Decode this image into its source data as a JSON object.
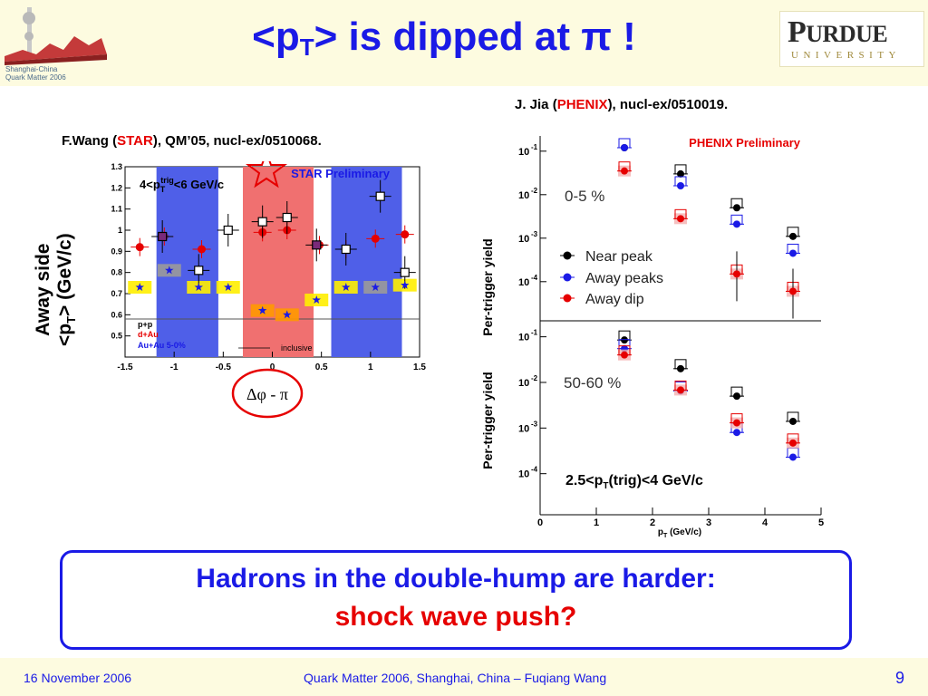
{
  "slide": {
    "title_main": "<p",
    "title_sub": "T",
    "title_rest": "> is dipped at π !",
    "slide_number": "9"
  },
  "logos": {
    "qm_line1": "Shanghai-China",
    "qm_line2": "Quark Matter 2006",
    "purdue_name_cap": "P",
    "purdue_name_rest": "URDUE",
    "purdue_univ": "UNIVERSITY"
  },
  "refs": {
    "star_prefix": "F.Wang (",
    "star_exp": "STAR",
    "star_suffix": "), QM’05, nucl-ex/0510068.",
    "phenix_prefix": "J. Jia (",
    "phenix_exp": "PHENIX",
    "phenix_suffix": "), nucl-ex/0510019."
  },
  "star_plot": {
    "ylabel_line1": "Away side",
    "ylabel_line2_pre": "<p",
    "ylabel_line2_sub": "T",
    "ylabel_line2_post": "> (GeV/c)",
    "xlabel": "Δφ - π",
    "preliminary": "STAR Preliminary",
    "range_label": "4<p",
    "range_sub": "T",
    "range_sup": "trig",
    "range_post": "<6 GeV/c",
    "legend_pp": "p+p",
    "legend_dau": "d+Au",
    "legend_auau": "Au+Au 5-0%",
    "legend_inclusive": "inclusive"
  },
  "phenix_plot": {
    "preliminary": "PHENIX Preliminary",
    "ylabel_top": "Per-trigger yield",
    "ylabel_bottom": "Per-trigger yield",
    "centrality_top": "0-5 %",
    "centrality_bottom": "50-60 %",
    "legend_near": "Near peak",
    "legend_away": "Away peaks",
    "legend_dip": "Away  dip",
    "trig_label_pre": "2.5<p",
    "trig_label_sub": "T",
    "trig_label_post": "(trig)<4 GeV/c",
    "xlabel_pre": "p",
    "xlabel_sub": "T",
    "xlabel_post": " (GeV/c)"
  },
  "conclusion": {
    "line1": "Hadrons in the double-hump are harder:",
    "line2": "shock wave push?"
  },
  "footer": {
    "date": "16 November 2006",
    "center": "Quark Matter 2006, Shanghai, China – Fuqiang Wang"
  },
  "colors": {
    "title_blue": "#1a1ae6",
    "accent_red": "#e60000",
    "band_blue": "#4f5fe8",
    "band_red": "#f07070",
    "header_bg": "#fdfbe0"
  },
  "chart_data": [
    {
      "type": "scatter",
      "title": "STAR Preliminary",
      "xlabel": "Δφ - π",
      "ylabel": "Away side <pT> (GeV/c)",
      "xlim": [
        -1.5,
        1.5
      ],
      "ylim": [
        0.4,
        1.3
      ],
      "x_ticks": [
        -1.5,
        -1,
        -0.5,
        0,
        0.5,
        1,
        1.5
      ],
      "y_ticks": [
        0.5,
        0.6,
        0.7,
        0.8,
        0.9,
        1,
        1.1,
        1.2,
        1.3
      ],
      "inclusive_level": 0.58,
      "series": [
        {
          "name": "p+p",
          "x": [
            -1.12,
            -0.75,
            -0.45,
            -0.1,
            0.15,
            0.45,
            0.75,
            1.1,
            1.35
          ],
          "y": [
            0.97,
            0.81,
            1.0,
            1.04,
            1.06,
            0.93,
            0.91,
            1.16,
            0.8
          ]
        },
        {
          "name": "d+Au",
          "x": [
            -1.35,
            -1.1,
            -0.72,
            -0.1,
            0.15,
            0.48,
            0.75,
            1.05,
            1.35
          ],
          "y": [
            0.92,
            0.97,
            0.91,
            0.99,
            1.0,
            0.93,
            0.91,
            0.96,
            0.98
          ]
        },
        {
          "name": "Au+Au 5-0%",
          "x": [
            -1.35,
            -1.05,
            -0.75,
            -0.45,
            -0.1,
            0.15,
            0.45,
            0.75,
            1.05,
            1.35
          ],
          "y": [
            0.73,
            0.81,
            0.73,
            0.73,
            0.62,
            0.6,
            0.67,
            0.73,
            0.73,
            0.74
          ]
        }
      ]
    },
    {
      "type": "scatter",
      "title": "PHENIX Preliminary",
      "xlabel": "pT (GeV/c)",
      "ylabel": "Per-trigger yield",
      "panel": "0-5 %",
      "xlim": [
        0,
        5
      ],
      "ylog": true,
      "y_ticks_labels": [
        "10-1",
        "10-2",
        "10-3",
        "10-4"
      ],
      "x": [
        1.5,
        2.5,
        3.5,
        4.5
      ],
      "series": [
        {
          "name": "Near peak",
          "values": [
            0.12,
            0.03,
            0.005,
            0.0011
          ]
        },
        {
          "name": "Away peaks",
          "values": [
            0.12,
            0.016,
            0.0021,
            0.00045
          ]
        },
        {
          "name": "Away  dip",
          "values": [
            0.035,
            0.0028,
            0.00015,
            6e-05
          ]
        }
      ]
    },
    {
      "type": "scatter",
      "title": "",
      "xlabel": "pT (GeV/c)",
      "ylabel": "Per-trigger yield",
      "panel": "50-60 %",
      "xlim": [
        0,
        5
      ],
      "ylog": true,
      "x_ticks": [
        0,
        1,
        2,
        3,
        4,
        5
      ],
      "y_ticks_labels": [
        "10-1",
        "10-2",
        "10-3",
        "10-4"
      ],
      "x": [
        1.5,
        2.5,
        3.5,
        4.5
      ],
      "series": [
        {
          "name": "Near peak",
          "values": [
            0.085,
            0.02,
            0.005,
            0.0014
          ]
        },
        {
          "name": "Away peaks",
          "values": [
            0.055,
            0.0065,
            0.0008,
            0.00023
          ]
        },
        {
          "name": "Away  dip",
          "values": [
            0.04,
            0.0068,
            0.0013,
            0.00047
          ]
        }
      ]
    }
  ]
}
